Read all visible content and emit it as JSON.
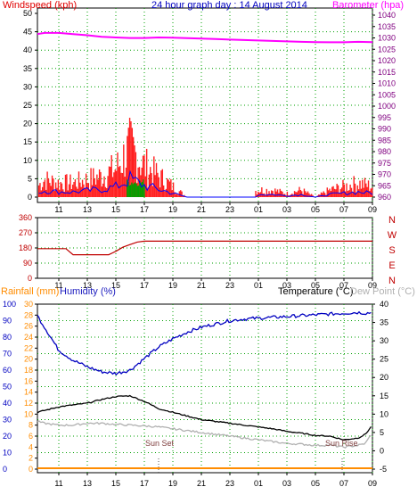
{
  "colors": {
    "wind": "#e00000",
    "gust": "#ff2020",
    "barometer": "#ff00ff",
    "direction": "#c00000",
    "dir_label": "#c00000",
    "rain": "#ff8c00",
    "humidity": "#0000c0",
    "humidity_label": "#2020c0",
    "temperature": "#000000",
    "dewpoint": "#b0b0b0",
    "grid": "#00a000",
    "title": "#0000c0",
    "windaxis": "#000000",
    "baroaxis": "#800080",
    "avg_wind": "#00a000",
    "bearing_line": "#0000ff"
  },
  "top": {
    "title": "24 hour graph day : 14 August 2014",
    "left_label": "Windspeed (kph)",
    "right_label": "Barometer (hpa)",
    "left_ticks": [
      "0",
      "5",
      "10",
      "15",
      "20",
      "25",
      "30",
      "35",
      "40",
      "45",
      "50"
    ],
    "right_ticks": [
      "960",
      "965",
      "970",
      "975",
      "980",
      "985",
      "990",
      "995",
      "1000",
      "1005",
      "1010",
      "1015",
      "1020",
      "1025",
      "1030",
      "1035",
      "1040"
    ],
    "x_ticks": [
      "11",
      "13",
      "15",
      "17",
      "19",
      "21",
      "23",
      "01",
      "03",
      "05",
      "07",
      "09"
    ]
  },
  "middle": {
    "left_ticks": [
      "0",
      "90",
      "180",
      "270",
      "360"
    ],
    "compass": [
      "N",
      "W",
      "S",
      "E",
      "N"
    ],
    "x_ticks": [
      "11",
      "13",
      "15",
      "17",
      "19",
      "21",
      "23",
      "01",
      "03",
      "05",
      "07",
      "09"
    ]
  },
  "bottom": {
    "rain_label": "Rainfall (mm)",
    "humidity_label": "Humidity (%)",
    "temp_label": "Temperature (°C)",
    "dew_label": "Dew Point (°C)",
    "humidity_ticks": [
      "0",
      "10",
      "20",
      "30",
      "40",
      "50",
      "60",
      "70",
      "80",
      "90",
      "100"
    ],
    "rain_ticks": [
      "0",
      "2",
      "4",
      "6",
      "8",
      "10",
      "12",
      "14",
      "16",
      "18",
      "20",
      "22",
      "24",
      "26",
      "28",
      "30"
    ],
    "temp_ticks": [
      "-5",
      "0",
      "5",
      "10",
      "15",
      "20",
      "25",
      "30",
      "35",
      "40"
    ],
    "x_ticks": [
      "11",
      "13",
      "15",
      "17",
      "19",
      "21",
      "23",
      "01",
      "03",
      "05",
      "07",
      "09"
    ],
    "sunset": "Sun Set",
    "sunrise": "Sun Rise"
  },
  "chart_data": [
    {
      "type": "line",
      "title": "24 hour graph day : 14 August 2014",
      "x": [
        9.5,
        10,
        11,
        12,
        13,
        14,
        15,
        16,
        17,
        18,
        19,
        20,
        21,
        22,
        23,
        24,
        25,
        26,
        27,
        28,
        29,
        30,
        31,
        32,
        33
      ],
      "series": [
        {
          "name": "Barometer (hpa)",
          "axis": "right",
          "ylim": [
            960,
            1040
          ],
          "values": [
            1031,
            1031.5,
            1031.5,
            1031,
            1030.5,
            1029.8,
            1029.5,
            1029.3,
            1029.3,
            1029.5,
            1029.4,
            1029.2,
            1029,
            1028.8,
            1028.6,
            1028.4,
            1028.2,
            1028,
            1027.8,
            1027.6,
            1027.5,
            1027.4,
            1027.4,
            1027.6,
            1027.5
          ]
        },
        {
          "name": "Windspeed (kph)",
          "axis": "left",
          "ylim": [
            0,
            50
          ],
          "values": [
            3,
            5,
            4,
            4,
            5,
            6,
            8,
            14,
            9,
            6,
            3,
            0,
            0,
            0,
            0,
            1,
            2,
            2,
            1,
            2,
            0,
            2,
            3,
            4,
            3
          ]
        }
      ]
    },
    {
      "type": "line",
      "ylim": [
        0,
        360
      ],
      "x": [
        9.5,
        11.5,
        12.0,
        14.5,
        15.0,
        15.5,
        16.0,
        16.5,
        17.0,
        33
      ],
      "series": [
        {
          "name": "",
          "values": [
            176,
            176,
            140,
            140,
            160,
            185,
            200,
            215,
            220,
            220
          ]
        }
      ]
    },
    {
      "type": "line",
      "x": [
        9.5,
        10,
        11,
        12,
        13,
        14,
        15,
        16,
        17,
        18,
        19,
        20,
        21,
        22,
        23,
        24,
        25,
        26,
        27,
        28,
        29,
        30,
        31,
        32,
        32.5,
        33
      ],
      "series": [
        {
          "name": "Humidity (%)",
          "axis": "humidity",
          "ylim": [
            0,
            100
          ],
          "values": [
            93,
            86,
            72,
            66,
            62,
            59,
            58,
            60,
            67,
            74,
            79,
            83,
            86,
            88,
            90,
            91,
            91.5,
            92,
            92.5,
            93,
            93.5,
            94,
            94.5,
            95,
            94.5,
            95
          ]
        },
        {
          "name": "Temperature (°C)",
          "axis": "temp",
          "ylim": [
            -5,
            40
          ],
          "values": [
            10.5,
            11,
            12,
            12.5,
            13,
            14,
            14.8,
            15,
            13.5,
            11.5,
            10.5,
            9.5,
            8.5,
            8,
            7.5,
            7,
            6.5,
            6,
            5.3,
            4.8,
            4.2,
            4,
            3,
            3.5,
            4.5,
            7
          ]
        },
        {
          "name": "Dew Point (°C)",
          "axis": "temp",
          "ylim": [
            -5,
            40
          ],
          "values": [
            8,
            7.5,
            7,
            7,
            7.5,
            7.5,
            7.2,
            7,
            6.8,
            6.5,
            6,
            5.5,
            5,
            4.5,
            4,
            3.5,
            3,
            2.5,
            2,
            1.8,
            1.5,
            1.5,
            1,
            1.5,
            2,
            5
          ]
        },
        {
          "name": "Rainfall (mm)",
          "axis": "rain",
          "ylim": [
            0,
            30
          ],
          "values": [
            0,
            0,
            0,
            0,
            0,
            0,
            0,
            0,
            0,
            0,
            0,
            0,
            0,
            0,
            0,
            0,
            0,
            0,
            0,
            0,
            0,
            0,
            0,
            0,
            0,
            0
          ]
        }
      ]
    }
  ]
}
